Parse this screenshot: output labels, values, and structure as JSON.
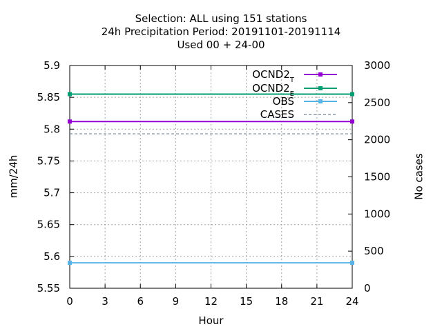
{
  "chart_data": {
    "type": "line",
    "title_lines": [
      "Selection: ALL using   151 stations",
      "24h Precipitation    Period: 20191101-20191114",
      "Used  00 + 24-00"
    ],
    "xlabel": "Hour",
    "ylabel": "mm/24h",
    "y2label": "No cases",
    "x_ticks": [
      "0",
      "3",
      "6",
      "9",
      "12",
      "15",
      "18",
      "21",
      "24"
    ],
    "y_ticks": [
      "5.55",
      "5.6",
      "5.65",
      "5.7",
      "5.75",
      "5.8",
      "5.85",
      "5.9"
    ],
    "y2_ticks": [
      "0",
      "500",
      "1000",
      "1500",
      "2000",
      "2500",
      "3000"
    ],
    "xlim": [
      0,
      24
    ],
    "ylim": [
      5.55,
      5.9
    ],
    "y2lim": [
      0,
      3000
    ],
    "grid": true,
    "legend_position": "top-right",
    "series": [
      {
        "name": "OCND2",
        "subscript": "T",
        "color": "#9400d3",
        "axis": "y",
        "marker": "filled-square",
        "style": "solid",
        "x": [
          0,
          24
        ],
        "y": [
          5.812,
          5.812
        ]
      },
      {
        "name": "OCND2",
        "subscript": "E",
        "color": "#009e73",
        "axis": "y",
        "marker": "filled-square",
        "style": "solid",
        "x": [
          0,
          24
        ],
        "y": [
          5.855,
          5.855
        ]
      },
      {
        "name": "OBS",
        "subscript": "",
        "color": "#56b4e9",
        "axis": "y",
        "marker": "filled-square",
        "style": "solid",
        "x": [
          0,
          24
        ],
        "y": [
          5.59,
          5.59
        ]
      },
      {
        "name": "CASES",
        "subscript": "",
        "color": "#708090",
        "axis": "y2",
        "marker": "none",
        "style": "dashed",
        "x": [
          0,
          24
        ],
        "y": [
          2080,
          2080
        ]
      }
    ]
  }
}
